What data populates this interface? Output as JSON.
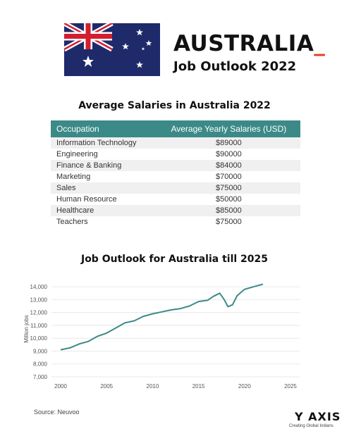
{
  "header": {
    "country": "AUSTRALIA",
    "cursor": "_",
    "subtitle": "Job Outlook 2022"
  },
  "colors": {
    "teal": "#3b8a88",
    "flag_blue": "#1f2a6b",
    "flag_red": "#d21f2f",
    "accent": "#e63b1f"
  },
  "salary_table": {
    "title": "Average Salaries in Australia 2022",
    "headers": [
      "Occupation",
      "Average Yearly Salaries (USD)"
    ],
    "rows": [
      [
        "Information Technology",
        "$89000"
      ],
      [
        "Engineering",
        "$90000"
      ],
      [
        "Finance & Banking",
        "$84000"
      ],
      [
        "Marketing",
        "$70000"
      ],
      [
        "Sales",
        "$75000"
      ],
      [
        "Human Resource",
        "$50000"
      ],
      [
        "Healthcare",
        "$85000"
      ],
      [
        "Teachers",
        "$75000"
      ]
    ]
  },
  "chart_data": {
    "type": "line",
    "title": "Job Outlook for Australia till 2025",
    "xlabel": "",
    "ylabel": "Million jobs",
    "xlim": [
      1999,
      2026
    ],
    "ylim": [
      7000,
      14500
    ],
    "xticks": [
      2000,
      2005,
      2010,
      2015,
      2020,
      2025
    ],
    "yticks": [
      7000,
      8000,
      9000,
      10000,
      11000,
      12000,
      13000,
      14000
    ],
    "ytick_labels": [
      "7,000",
      "8,000",
      "9,000",
      "10,000",
      "11,000",
      "12,000",
      "13,000",
      "14,000"
    ],
    "grid": "horizontal",
    "color": "#3b8a88",
    "x": [
      2000,
      2001,
      2002,
      2003,
      2004,
      2005,
      2006,
      2007,
      2008,
      2009,
      2010,
      2011,
      2012,
      2013,
      2014,
      2015,
      2016,
      2016.6,
      2017.3,
      2017.8,
      2018.2,
      2018.7,
      2019.2,
      2020,
      2021,
      2022
    ],
    "y": [
      9100,
      9250,
      9550,
      9750,
      10150,
      10400,
      10800,
      11200,
      11350,
      11700,
      11900,
      12050,
      12200,
      12300,
      12500,
      12850,
      12950,
      13250,
      13500,
      13000,
      12450,
      12600,
      13300,
      13800,
      14000,
      14200
    ]
  },
  "footer": {
    "source": "Source: Neuvoo",
    "logo_y": "Y",
    "logo_axis": "AXIS",
    "tagline": "Creating Global Indians"
  }
}
